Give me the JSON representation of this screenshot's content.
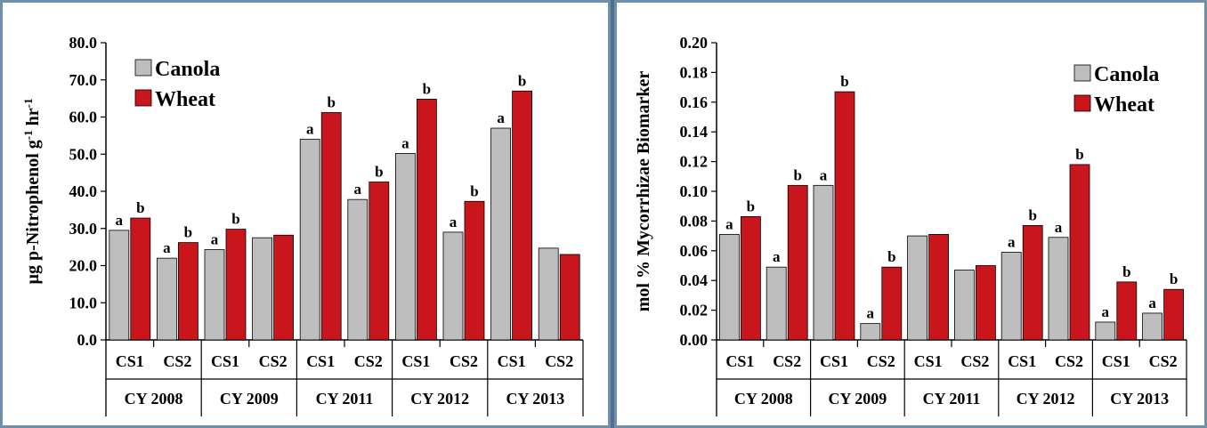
{
  "colors": {
    "canola": "#bebebe",
    "wheat": "#c8161c",
    "panel_border": "#6e8fab"
  },
  "chart_data": [
    {
      "type": "bar",
      "ylabel": "µg p-Nitrophenol g⁻¹ hr⁻¹",
      "ylabel_main": "µg p-Nitrophenol g",
      "ylabel_sup1": "-1",
      "ylabel_mid": " hr",
      "ylabel_sup2": "-1",
      "ylim": [
        0,
        80
      ],
      "yticks": [
        "0.0",
        "10.0",
        "20.0",
        "30.0",
        "40.0",
        "50.0",
        "60.0",
        "70.0",
        "80.0"
      ],
      "ytick_values": [
        0,
        10,
        20,
        30,
        40,
        50,
        60,
        70,
        80
      ],
      "legend_position": "top-left",
      "categories": [
        "CS1",
        "CS2",
        "CS1",
        "CS2",
        "CS1",
        "CS2",
        "CS1",
        "CS2",
        "CS1",
        "CS2"
      ],
      "groups": [
        "CY 2008",
        "CY 2009",
        "CY 2011",
        "CY 2012",
        "CY 2013"
      ],
      "series": [
        {
          "name": "Canola",
          "values": [
            29.5,
            22.0,
            24.3,
            27.5,
            54.0,
            37.8,
            50.2,
            29.0,
            57.0,
            24.7
          ],
          "labels": [
            "a",
            "a",
            "a",
            "",
            "a",
            "a",
            "a",
            "a",
            "a",
            ""
          ]
        },
        {
          "name": "Wheat",
          "values": [
            32.8,
            26.2,
            29.8,
            28.2,
            61.2,
            42.5,
            64.8,
            37.3,
            67.0,
            23.0
          ],
          "labels": [
            "b",
            "b",
            "b",
            "",
            "b",
            "b",
            "b",
            "b",
            "b",
            ""
          ]
        }
      ]
    },
    {
      "type": "bar",
      "ylabel": "mol % Mycorrhizae Biomarker",
      "ylim": [
        0,
        0.2
      ],
      "yticks": [
        "0.00",
        "0.02",
        "0.04",
        "0.06",
        "0.08",
        "0.10",
        "0.12",
        "0.14",
        "0.16",
        "0.18",
        "0.20"
      ],
      "ytick_values": [
        0,
        0.02,
        0.04,
        0.06,
        0.08,
        0.1,
        0.12,
        0.14,
        0.16,
        0.18,
        0.2
      ],
      "legend_position": "top-right",
      "categories": [
        "CS1",
        "CS2",
        "CS1",
        "CS2",
        "CS1",
        "CS2",
        "CS1",
        "CS2",
        "CS1",
        "CS2"
      ],
      "groups": [
        "CY 2008",
        "CY 2009",
        "CY 2011",
        "CY 2012",
        "CY 2013"
      ],
      "series": [
        {
          "name": "Canola",
          "values": [
            0.071,
            0.049,
            0.104,
            0.011,
            0.07,
            0.047,
            0.059,
            0.069,
            0.012,
            0.018
          ],
          "labels": [
            "a",
            "a",
            "a",
            "a",
            "",
            "",
            "a",
            "a",
            "a",
            "a"
          ]
        },
        {
          "name": "Wheat",
          "values": [
            0.083,
            0.104,
            0.167,
            0.049,
            0.071,
            0.05,
            0.077,
            0.118,
            0.039,
            0.034
          ],
          "labels": [
            "b",
            "b",
            "b",
            "b",
            "",
            "",
            "b",
            "b",
            "b",
            "b"
          ]
        }
      ]
    }
  ]
}
